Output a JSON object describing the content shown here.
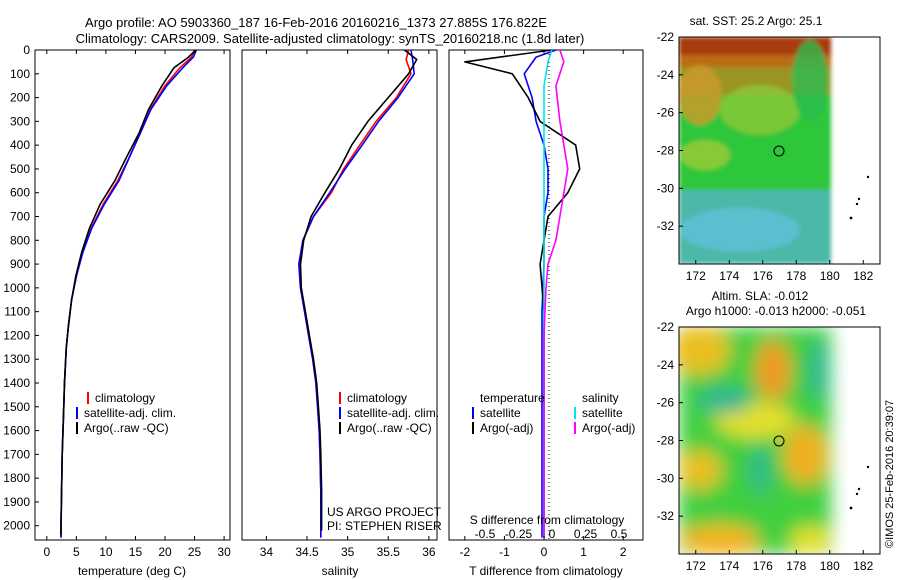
{
  "header": {
    "line1": "Argo profile: AO 5903360_187 16-Feb-2016 20160216_1373 27.885S 176.822E",
    "line2": "Climatology: CARS2009. Satellite-adjusted climatology: synTS_20160218.nc (1.8d later)"
  },
  "colors": {
    "climatology": "#ff0000",
    "satellite": "#0000ff",
    "argo": "#000000",
    "salinity_satellite": "#00e5e5",
    "salinity_argo": "#ff00ff"
  },
  "chart_data": [
    {
      "type": "line",
      "id": "temperature",
      "xlabel": "temperature (deg C)",
      "xlim": [
        -2,
        31
      ],
      "xticks": [
        0,
        5,
        10,
        15,
        20,
        25,
        30
      ],
      "ylim": [
        0,
        2060
      ],
      "yticks": [
        0,
        100,
        200,
        300,
        400,
        500,
        600,
        700,
        800,
        900,
        1000,
        1100,
        1200,
        1300,
        1400,
        1500,
        1600,
        1700,
        1800,
        1900,
        2000
      ],
      "legend": [
        "climatology",
        "satellite-adj. clim.",
        "Argo(..raw -QC)"
      ],
      "series": [
        {
          "name": "climatology",
          "color": "#ff0000",
          "x": [
            25.0,
            24.5,
            22.5,
            20.0,
            17.5,
            15.8,
            14.0,
            12.0,
            9.5,
            7.5,
            6.0,
            5.0,
            4.2,
            3.7,
            3.3,
            3.0,
            2.8,
            2.6,
            2.5,
            2.4,
            2.4
          ],
          "y": [
            0,
            30,
            75,
            150,
            250,
            350,
            450,
            550,
            650,
            750,
            850,
            950,
            1050,
            1150,
            1250,
            1400,
            1550,
            1700,
            1850,
            2000,
            2050
          ]
        },
        {
          "name": "satellite-adj. clim.",
          "color": "#0000ff",
          "x": [
            25.3,
            24.8,
            23.0,
            20.3,
            17.6,
            15.8,
            14.0,
            12.2,
            9.7,
            7.6,
            6.1,
            5.0,
            4.2,
            3.7,
            3.3,
            3.0,
            2.8,
            2.6,
            2.5,
            2.4,
            2.4
          ],
          "y": [
            0,
            30,
            75,
            150,
            250,
            350,
            450,
            550,
            650,
            750,
            850,
            950,
            1050,
            1150,
            1250,
            1400,
            1550,
            1700,
            1850,
            2000,
            2050
          ]
        },
        {
          "name": "Argo(..raw -QC)",
          "color": "#000000",
          "x": [
            25.2,
            24.0,
            21.5,
            19.5,
            17.2,
            15.6,
            13.5,
            11.5,
            9.0,
            7.2,
            5.9,
            4.9,
            4.2,
            3.7,
            3.3,
            3.0,
            2.8,
            2.6,
            2.5,
            2.4,
            2.4
          ],
          "y": [
            0,
            30,
            75,
            150,
            250,
            350,
            450,
            550,
            650,
            750,
            850,
            950,
            1050,
            1150,
            1250,
            1400,
            1550,
            1700,
            1850,
            2000,
            2040
          ]
        }
      ]
    },
    {
      "type": "line",
      "id": "salinity",
      "xlabel": "salinity",
      "xlim": [
        33.7,
        36.1
      ],
      "xticks": [
        34,
        34.5,
        35,
        35.5,
        36
      ],
      "ylim": [
        0,
        2060
      ],
      "legend": [
        "climatology",
        "satellite-adj. clim.",
        "Argo(..raw -QC)"
      ],
      "annotations": [
        "US ARGO PROJECT",
        "PI: STEPHEN RISER"
      ],
      "series": [
        {
          "name": "climatology",
          "color": "#ff0000",
          "x": [
            35.75,
            35.72,
            35.78,
            35.6,
            35.35,
            35.15,
            34.95,
            34.8,
            34.58,
            34.45,
            34.4,
            34.42,
            34.47,
            34.52,
            34.57,
            34.61,
            34.63,
            34.65,
            34.66,
            34.67,
            34.67
          ],
          "y": [
            0,
            40,
            100,
            200,
            300,
            400,
            500,
            600,
            700,
            800,
            900,
            1000,
            1100,
            1200,
            1300,
            1400,
            1500,
            1600,
            1700,
            1850,
            2050
          ]
        },
        {
          "name": "satellite-adj. clim.",
          "color": "#0000ff",
          "x": [
            35.78,
            35.8,
            35.82,
            35.62,
            35.38,
            35.18,
            34.97,
            34.78,
            34.58,
            34.45,
            34.4,
            34.42,
            34.47,
            34.52,
            34.57,
            34.61,
            34.63,
            34.65,
            34.66,
            34.67,
            34.67
          ],
          "y": [
            0,
            40,
            100,
            200,
            300,
            400,
            500,
            600,
            700,
            800,
            900,
            1000,
            1100,
            1200,
            1300,
            1400,
            1500,
            1600,
            1700,
            1850,
            2050
          ]
        },
        {
          "name": "Argo(..raw -QC)",
          "color": "#000000",
          "x": [
            35.7,
            35.85,
            35.75,
            35.5,
            35.25,
            35.05,
            34.9,
            34.72,
            34.55,
            34.46,
            34.42,
            34.43,
            34.48,
            34.53,
            34.58,
            34.62,
            34.64,
            34.66,
            34.67,
            34.68,
            34.68
          ],
          "y": [
            0,
            40,
            100,
            200,
            300,
            400,
            500,
            600,
            700,
            800,
            900,
            1000,
            1100,
            1200,
            1300,
            1400,
            1500,
            1600,
            1700,
            1850,
            2020
          ]
        }
      ]
    },
    {
      "type": "line",
      "id": "differences",
      "xlabel": "T difference from climatology",
      "xlim": [
        -2.4,
        2.5
      ],
      "xticks": [
        -2,
        -1,
        0,
        1,
        2
      ],
      "secondary_xlabel": "S difference from climatology",
      "secondary_xticks": [
        "-0.5",
        "-0.25",
        "0",
        "0.25",
        "0.5"
      ],
      "ylim": [
        0,
        2060
      ],
      "legend_headers": [
        "temperature",
        "salinity"
      ],
      "legend": [
        "satellite",
        "Argo(-adj)",
        "satellite",
        "Argo(-adj)"
      ],
      "series": [
        {
          "name": "satellite",
          "color": "#0000ff",
          "x": [
            0.3,
            -0.2,
            -0.5,
            -0.3,
            -0.2,
            0.0,
            0.1,
            0.1,
            0.0,
            0.0,
            -0.05,
            -0.05,
            -0.05,
            -0.05,
            -0.05
          ],
          "y": [
            0,
            30,
            100,
            200,
            300,
            400,
            500,
            600,
            700,
            900,
            1100,
            1300,
            1500,
            1800,
            2050
          ]
        },
        {
          "name": "Argo(-adj)",
          "color": "#000000",
          "x": [
            0.2,
            -2.0,
            -0.8,
            -0.4,
            -0.1,
            0.8,
            0.9,
            0.6,
            0.1,
            -0.1,
            0.0,
            0.0,
            0.0,
            0.0,
            0.0
          ],
          "y": [
            0,
            50,
            100,
            200,
            300,
            400,
            500,
            600,
            700,
            900,
            1100,
            1300,
            1500,
            1800,
            2050
          ]
        },
        {
          "name": "satellite",
          "color": "#00e5e5",
          "x": [
            0.2,
            0.1,
            0.0,
            0.0,
            0.0,
            0.0,
            0.0,
            0.0,
            0.0,
            0.0,
            0.0,
            0.0
          ],
          "y": [
            0,
            50,
            150,
            300,
            500,
            700,
            900,
            1100,
            1300,
            1500,
            1800,
            2050
          ]
        },
        {
          "name": "Argo(-adj)",
          "color": "#ff00ff",
          "x": [
            0.4,
            0.5,
            0.3,
            0.4,
            0.6,
            0.4,
            0.3,
            0.1,
            0.05,
            0.0,
            0.0,
            0.0
          ],
          "y": [
            0,
            50,
            150,
            300,
            500,
            700,
            800,
            900,
            1000,
            1200,
            1600,
            2050
          ]
        }
      ]
    },
    {
      "type": "heatmap",
      "id": "sst-map",
      "title": "sat. SST: 25.2 Argo: 25.1",
      "xticks": [
        172,
        174,
        176,
        178,
        180,
        182
      ],
      "yticks": [
        -22,
        -24,
        -26,
        -28,
        -30,
        -32
      ],
      "xlim": [
        171,
        183
      ],
      "ylim": [
        -34,
        -22
      ],
      "marker": {
        "lon": 176.822,
        "lat": -27.885
      }
    },
    {
      "type": "heatmap",
      "id": "sla-map",
      "title": "Altim. SLA: -0.012",
      "subtitle": "Argo h1000: -0.013 h2000: -0.051",
      "xticks": [
        172,
        174,
        176,
        178,
        180,
        182
      ],
      "yticks": [
        -22,
        -24,
        -26,
        -28,
        -30,
        -32
      ],
      "xlim": [
        171,
        183
      ],
      "ylim": [
        -34,
        -22
      ],
      "marker": {
        "lon": 176.822,
        "lat": -27.885
      }
    }
  ],
  "footer": {
    "stamp": "©IMOS 25-Feb-2016 20:39:07"
  }
}
